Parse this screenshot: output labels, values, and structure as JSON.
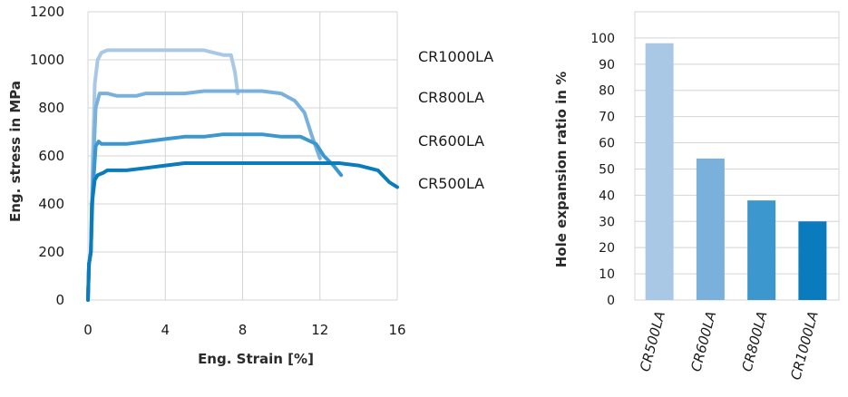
{
  "chart_data": [
    {
      "type": "line",
      "title": "",
      "xlabel": "Eng. Strain [%]",
      "ylabel": "Eng. stress in MPa",
      "xlim": [
        0,
        16
      ],
      "ylim": [
        0,
        1200
      ],
      "xticks": [
        0,
        4,
        8,
        12,
        16
      ],
      "yticks": [
        0,
        200,
        400,
        600,
        800,
        1000,
        1200
      ],
      "grid": true,
      "series": [
        {
          "name": "CR1000LA",
          "color": "#a9c8e6",
          "points": [
            [
              0,
              0
            ],
            [
              0.05,
              150
            ],
            [
              0.15,
              200
            ],
            [
              0.25,
              600
            ],
            [
              0.35,
              900
            ],
            [
              0.5,
              1000
            ],
            [
              0.7,
              1030
            ],
            [
              1.0,
              1040
            ],
            [
              2,
              1040
            ],
            [
              4,
              1040
            ],
            [
              6,
              1040
            ],
            [
              7.0,
              1020
            ],
            [
              7.4,
              1020
            ],
            [
              7.6,
              950
            ],
            [
              7.75,
              860
            ]
          ]
        },
        {
          "name": "CR800LA",
          "color": "#7ab1dc",
          "points": [
            [
              0,
              0
            ],
            [
              0.05,
              150
            ],
            [
              0.15,
              200
            ],
            [
              0.25,
              500
            ],
            [
              0.4,
              800
            ],
            [
              0.6,
              860
            ],
            [
              1.0,
              860
            ],
            [
              1.5,
              850
            ],
            [
              2.5,
              850
            ],
            [
              3,
              860
            ],
            [
              5,
              860
            ],
            [
              6,
              870
            ],
            [
              8,
              870
            ],
            [
              9,
              870
            ],
            [
              10,
              860
            ],
            [
              10.7,
              830
            ],
            [
              11.2,
              780
            ],
            [
              11.6,
              680
            ],
            [
              12.0,
              590
            ]
          ]
        },
        {
          "name": "CR600LA",
          "color": "#3b97cd",
          "points": [
            [
              0,
              0
            ],
            [
              0.05,
              150
            ],
            [
              0.15,
              200
            ],
            [
              0.25,
              450
            ],
            [
              0.4,
              640
            ],
            [
              0.55,
              660
            ],
            [
              0.7,
              650
            ],
            [
              1,
              650
            ],
            [
              2,
              650
            ],
            [
              3,
              660
            ],
            [
              4,
              670
            ],
            [
              5,
              680
            ],
            [
              6,
              680
            ],
            [
              7,
              690
            ],
            [
              8,
              690
            ],
            [
              9,
              690
            ],
            [
              10,
              680
            ],
            [
              11,
              680
            ],
            [
              11.8,
              650
            ],
            [
              12.2,
              600
            ],
            [
              12.7,
              560
            ],
            [
              13.1,
              520
            ]
          ]
        },
        {
          "name": "CR500LA",
          "color": "#0a7bbd",
          "points": [
            [
              0,
              0
            ],
            [
              0.05,
              150
            ],
            [
              0.15,
              200
            ],
            [
              0.2,
              400
            ],
            [
              0.35,
              500
            ],
            [
              0.5,
              520
            ],
            [
              0.8,
              530
            ],
            [
              1,
              540
            ],
            [
              2,
              540
            ],
            [
              3,
              550
            ],
            [
              4,
              560
            ],
            [
              5,
              570
            ],
            [
              6,
              570
            ],
            [
              8,
              570
            ],
            [
              10,
              570
            ],
            [
              12,
              570
            ],
            [
              13,
              570
            ],
            [
              14,
              560
            ],
            [
              15,
              540
            ],
            [
              15.6,
              490
            ],
            [
              16,
              470
            ]
          ]
        }
      ]
    },
    {
      "type": "bar",
      "title": "",
      "xlabel": "",
      "ylabel": "Hole expansion ratio in %",
      "ylim": [
        0,
        110
      ],
      "yticks": [
        0,
        10,
        20,
        30,
        40,
        50,
        60,
        70,
        80,
        90,
        100
      ],
      "grid": true,
      "categories": [
        "CR500LA",
        "CR600LA",
        "CR800LA",
        "CR1000LA"
      ],
      "values": [
        98,
        54,
        38,
        30
      ],
      "colors": [
        "#a9c8e6",
        "#7ab1dc",
        "#3b97cd",
        "#0a7bbd"
      ]
    }
  ]
}
